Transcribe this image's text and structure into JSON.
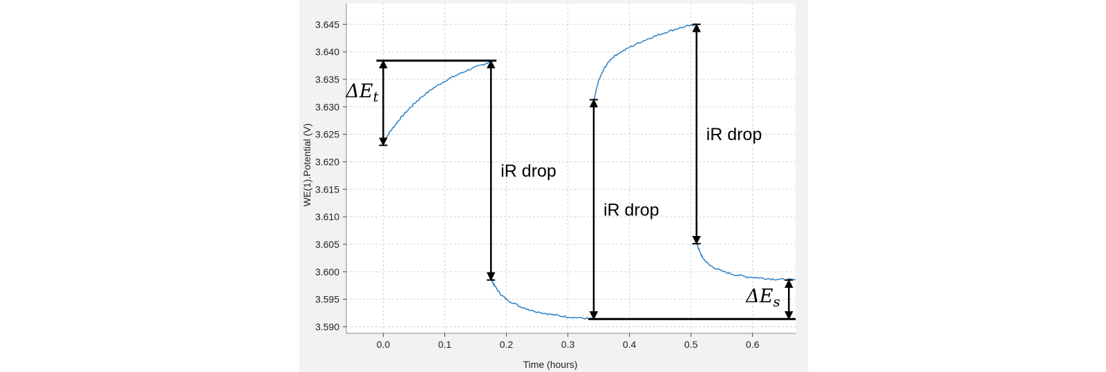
{
  "chart_data": {
    "type": "line",
    "xlabel": "Time (hours)",
    "ylabel": "WE(1).Potential (V)",
    "xlim": [
      -0.06,
      0.67
    ],
    "ylim": [
      3.5888,
      3.6488
    ],
    "x_ticks": [
      "0.0",
      "0.1",
      "0.2",
      "0.3",
      "0.4",
      "0.5",
      "0.6"
    ],
    "y_ticks": [
      "3.590",
      "3.595",
      "3.600",
      "3.605",
      "3.610",
      "3.615",
      "3.620",
      "3.625",
      "3.630",
      "3.635",
      "3.640",
      "3.645"
    ],
    "grid": true,
    "line_color": "#2f7fc1",
    "series": [
      {
        "values": [
          [
            0.0,
            3.6235
          ],
          [
            0.01,
            3.6253
          ],
          [
            0.02,
            3.6268
          ],
          [
            0.03,
            3.6282
          ],
          [
            0.045,
            3.63
          ],
          [
            0.06,
            3.6316
          ],
          [
            0.08,
            3.6333
          ],
          [
            0.1,
            3.6347
          ],
          [
            0.12,
            3.6358
          ],
          [
            0.14,
            3.6368
          ],
          [
            0.16,
            3.6376
          ],
          [
            0.174,
            3.6382
          ],
          [
            0.176,
            3.5986
          ],
          [
            0.18,
            3.5976
          ],
          [
            0.19,
            3.596
          ],
          [
            0.2,
            3.595
          ],
          [
            0.22,
            3.5938
          ],
          [
            0.24,
            3.593
          ],
          [
            0.26,
            3.5925
          ],
          [
            0.28,
            3.5921
          ],
          [
            0.3,
            3.5918
          ],
          [
            0.32,
            3.5916
          ],
          [
            0.34,
            3.5914
          ],
          [
            0.342,
            3.6308
          ],
          [
            0.345,
            3.6325
          ],
          [
            0.35,
            3.6348
          ],
          [
            0.36,
            3.6372
          ],
          [
            0.37,
            3.6387
          ],
          [
            0.38,
            3.6396
          ],
          [
            0.4,
            3.6408
          ],
          [
            0.42,
            3.6419
          ],
          [
            0.44,
            3.6428
          ],
          [
            0.46,
            3.6436
          ],
          [
            0.48,
            3.6443
          ],
          [
            0.5,
            3.6448
          ],
          [
            0.508,
            3.645
          ],
          [
            0.51,
            3.605
          ],
          [
            0.515,
            3.6034
          ],
          [
            0.52,
            3.6024
          ],
          [
            0.53,
            3.6012
          ],
          [
            0.55,
            3.6001
          ],
          [
            0.57,
            3.5995
          ],
          [
            0.59,
            3.5991
          ],
          [
            0.61,
            3.5989
          ],
          [
            0.63,
            3.5987
          ],
          [
            0.65,
            3.5986
          ],
          [
            0.67,
            3.5985
          ]
        ]
      }
    ],
    "annotations": [
      {
        "label": "ΔE",
        "subscript": "t",
        "x": 0.0,
        "y_from": 3.623,
        "y_to": 3.6384
      },
      {
        "label": "iR drop",
        "x": 0.175,
        "y_from": 3.6384,
        "y_to": 3.5985
      },
      {
        "label": "iR drop",
        "x": 0.342,
        "y_from": 3.5914,
        "y_to": 3.6313
      },
      {
        "label": "iR drop",
        "x": 0.509,
        "y_from": 3.645,
        "y_to": 3.6051
      },
      {
        "label": "ΔE",
        "subscript": "s",
        "x": 0.659,
        "y_from": 3.5914,
        "y_to": 3.5985
      }
    ]
  }
}
